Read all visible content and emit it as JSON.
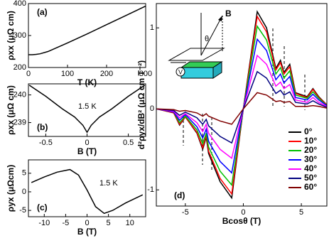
{
  "chart_data": [
    {
      "type": "line",
      "panel_label": "(a)",
      "xlabel": "T (K)",
      "ylabel": "ρxx (μΩ cm)",
      "xlim": [
        0,
        300
      ],
      "ylim": [
        200,
        400
      ],
      "xticks": [
        0,
        100,
        200,
        300
      ],
      "yticks": [
        200,
        300,
        400
      ],
      "x": [
        0,
        10,
        20,
        30,
        50,
        100,
        150,
        200,
        250,
        300
      ],
      "values": [
        240,
        240,
        241,
        243,
        250,
        277,
        305,
        334,
        363,
        392
      ],
      "color": "#000000"
    },
    {
      "type": "line",
      "panel_label": "(b)",
      "xlabel": "B (T)",
      "ylabel": "ρxx (μΩ cm)",
      "annotation": "1.5 K",
      "xlim": [
        -0.71,
        0.71
      ],
      "ylim": [
        238.5,
        240.4
      ],
      "xticks": [
        -0.5,
        0,
        0.5
      ],
      "yticks": [
        239,
        240
      ],
      "x": [
        -0.7,
        -0.5,
        -0.3,
        -0.15,
        -0.05,
        0,
        0.05,
        0.15,
        0.3,
        0.5,
        0.7
      ],
      "values": [
        240.35,
        239.95,
        239.5,
        239.2,
        238.9,
        238.65,
        238.9,
        239.2,
        239.5,
        239.95,
        240.35
      ],
      "color": "#000000"
    },
    {
      "type": "line",
      "panel_label": "(c)",
      "xlabel": "B (T)",
      "ylabel": "ρyx (μΩcm)",
      "annotation": "1.5 K",
      "xlim": [
        -13.7,
        13.7
      ],
      "ylim": [
        -6.7,
        8.6
      ],
      "xticks": [
        -10,
        -5,
        0,
        5,
        10
      ],
      "yticks": [
        -5,
        0,
        5
      ],
      "x": [
        -13,
        -10,
        -7,
        -4,
        -2,
        0,
        2,
        4,
        6,
        9,
        13
      ],
      "values": [
        2.5,
        4,
        5.3,
        6,
        4.5,
        0.5,
        -4,
        -5.8,
        -5,
        -3,
        -0.8
      ],
      "color": "#000000"
    },
    {
      "type": "line",
      "panel_label": "(d)",
      "xlabel": "Bcosθ (T)",
      "ylabel": "d²ρyx/dB² (μΩ cm T⁻²)",
      "xlim": [
        -7.5,
        7.2
      ],
      "ylim": [
        -1.2,
        1.3
      ],
      "xticks": [
        -5,
        0,
        5
      ],
      "yticks": [
        -1,
        0,
        1
      ],
      "x": [
        -7.5,
        -6,
        -5.5,
        -5,
        -4,
        -3.5,
        -3.2,
        -3,
        -2,
        -1,
        0,
        1.2,
        2,
        2.8,
        3.2,
        3.5,
        4,
        4.5,
        5.5,
        6,
        6.5,
        7.2
      ],
      "series": [
        {
          "name": "0°",
          "color": "#000000",
          "values": [
            0,
            -0.05,
            -0.2,
            -0.1,
            -0.3,
            -0.5,
            -0.35,
            -0.55,
            -0.9,
            -1.1,
            0,
            1.2,
            1.0,
            0.5,
            0.6,
            0.45,
            0.55,
            0.2,
            0.15,
            0.25,
            0.15,
            0.05
          ]
        },
        {
          "name": "10°",
          "color": "#ff0000",
          "values": [
            0,
            -0.05,
            -0.19,
            -0.1,
            -0.29,
            -0.48,
            -0.33,
            -0.52,
            -0.86,
            -1.05,
            0,
            1.14,
            0.95,
            0.48,
            0.57,
            0.43,
            0.52,
            0.19,
            0.14,
            0.24,
            0.14,
            0.05
          ]
        },
        {
          "name": "20°",
          "color": "#00c000",
          "values": [
            0,
            -0.04,
            -0.17,
            -0.09,
            -0.26,
            -0.43,
            -0.3,
            -0.47,
            -0.77,
            -0.94,
            0,
            1.02,
            0.85,
            0.43,
            0.51,
            0.38,
            0.47,
            0.17,
            0.13,
            0.21,
            0.13,
            0.04
          ]
        },
        {
          "name": "30°",
          "color": "#0000ff",
          "values": [
            0,
            -0.04,
            -0.14,
            -0.07,
            -0.22,
            -0.36,
            -0.25,
            -0.4,
            -0.65,
            -0.79,
            0,
            0.86,
            0.72,
            0.36,
            0.43,
            0.32,
            0.4,
            0.14,
            0.11,
            0.18,
            0.11,
            0.04
          ]
        },
        {
          "name": "40°",
          "color": "#ff00ff",
          "values": [
            0,
            -0.03,
            -0.11,
            -0.06,
            -0.17,
            -0.28,
            -0.19,
            -0.3,
            -0.5,
            -0.61,
            0,
            0.66,
            0.55,
            0.28,
            0.33,
            0.25,
            0.3,
            0.11,
            0.08,
            0.14,
            0.08,
            0.03
          ]
        },
        {
          "name": "50°",
          "color": "#000080",
          "values": [
            0,
            -0.02,
            -0.08,
            -0.04,
            -0.11,
            -0.19,
            -0.13,
            -0.21,
            -0.34,
            -0.42,
            0,
            0.46,
            0.38,
            0.19,
            0.23,
            0.17,
            0.21,
            0.08,
            0.06,
            0.1,
            0.06,
            0.02
          ]
        },
        {
          "name": "60°",
          "color": "#800000",
          "values": [
            0,
            -0.01,
            -0.03,
            -0.02,
            -0.05,
            -0.09,
            -0.06,
            -0.09,
            -0.15,
            -0.19,
            0,
            0.2,
            0.17,
            0.09,
            0.1,
            0.08,
            0.09,
            0.03,
            0.03,
            0.04,
            0.03,
            0.01
          ]
        }
      ]
    }
  ],
  "inset": {
    "field_label": "B",
    "angle_label": "θ",
    "voltage_label": "V"
  }
}
